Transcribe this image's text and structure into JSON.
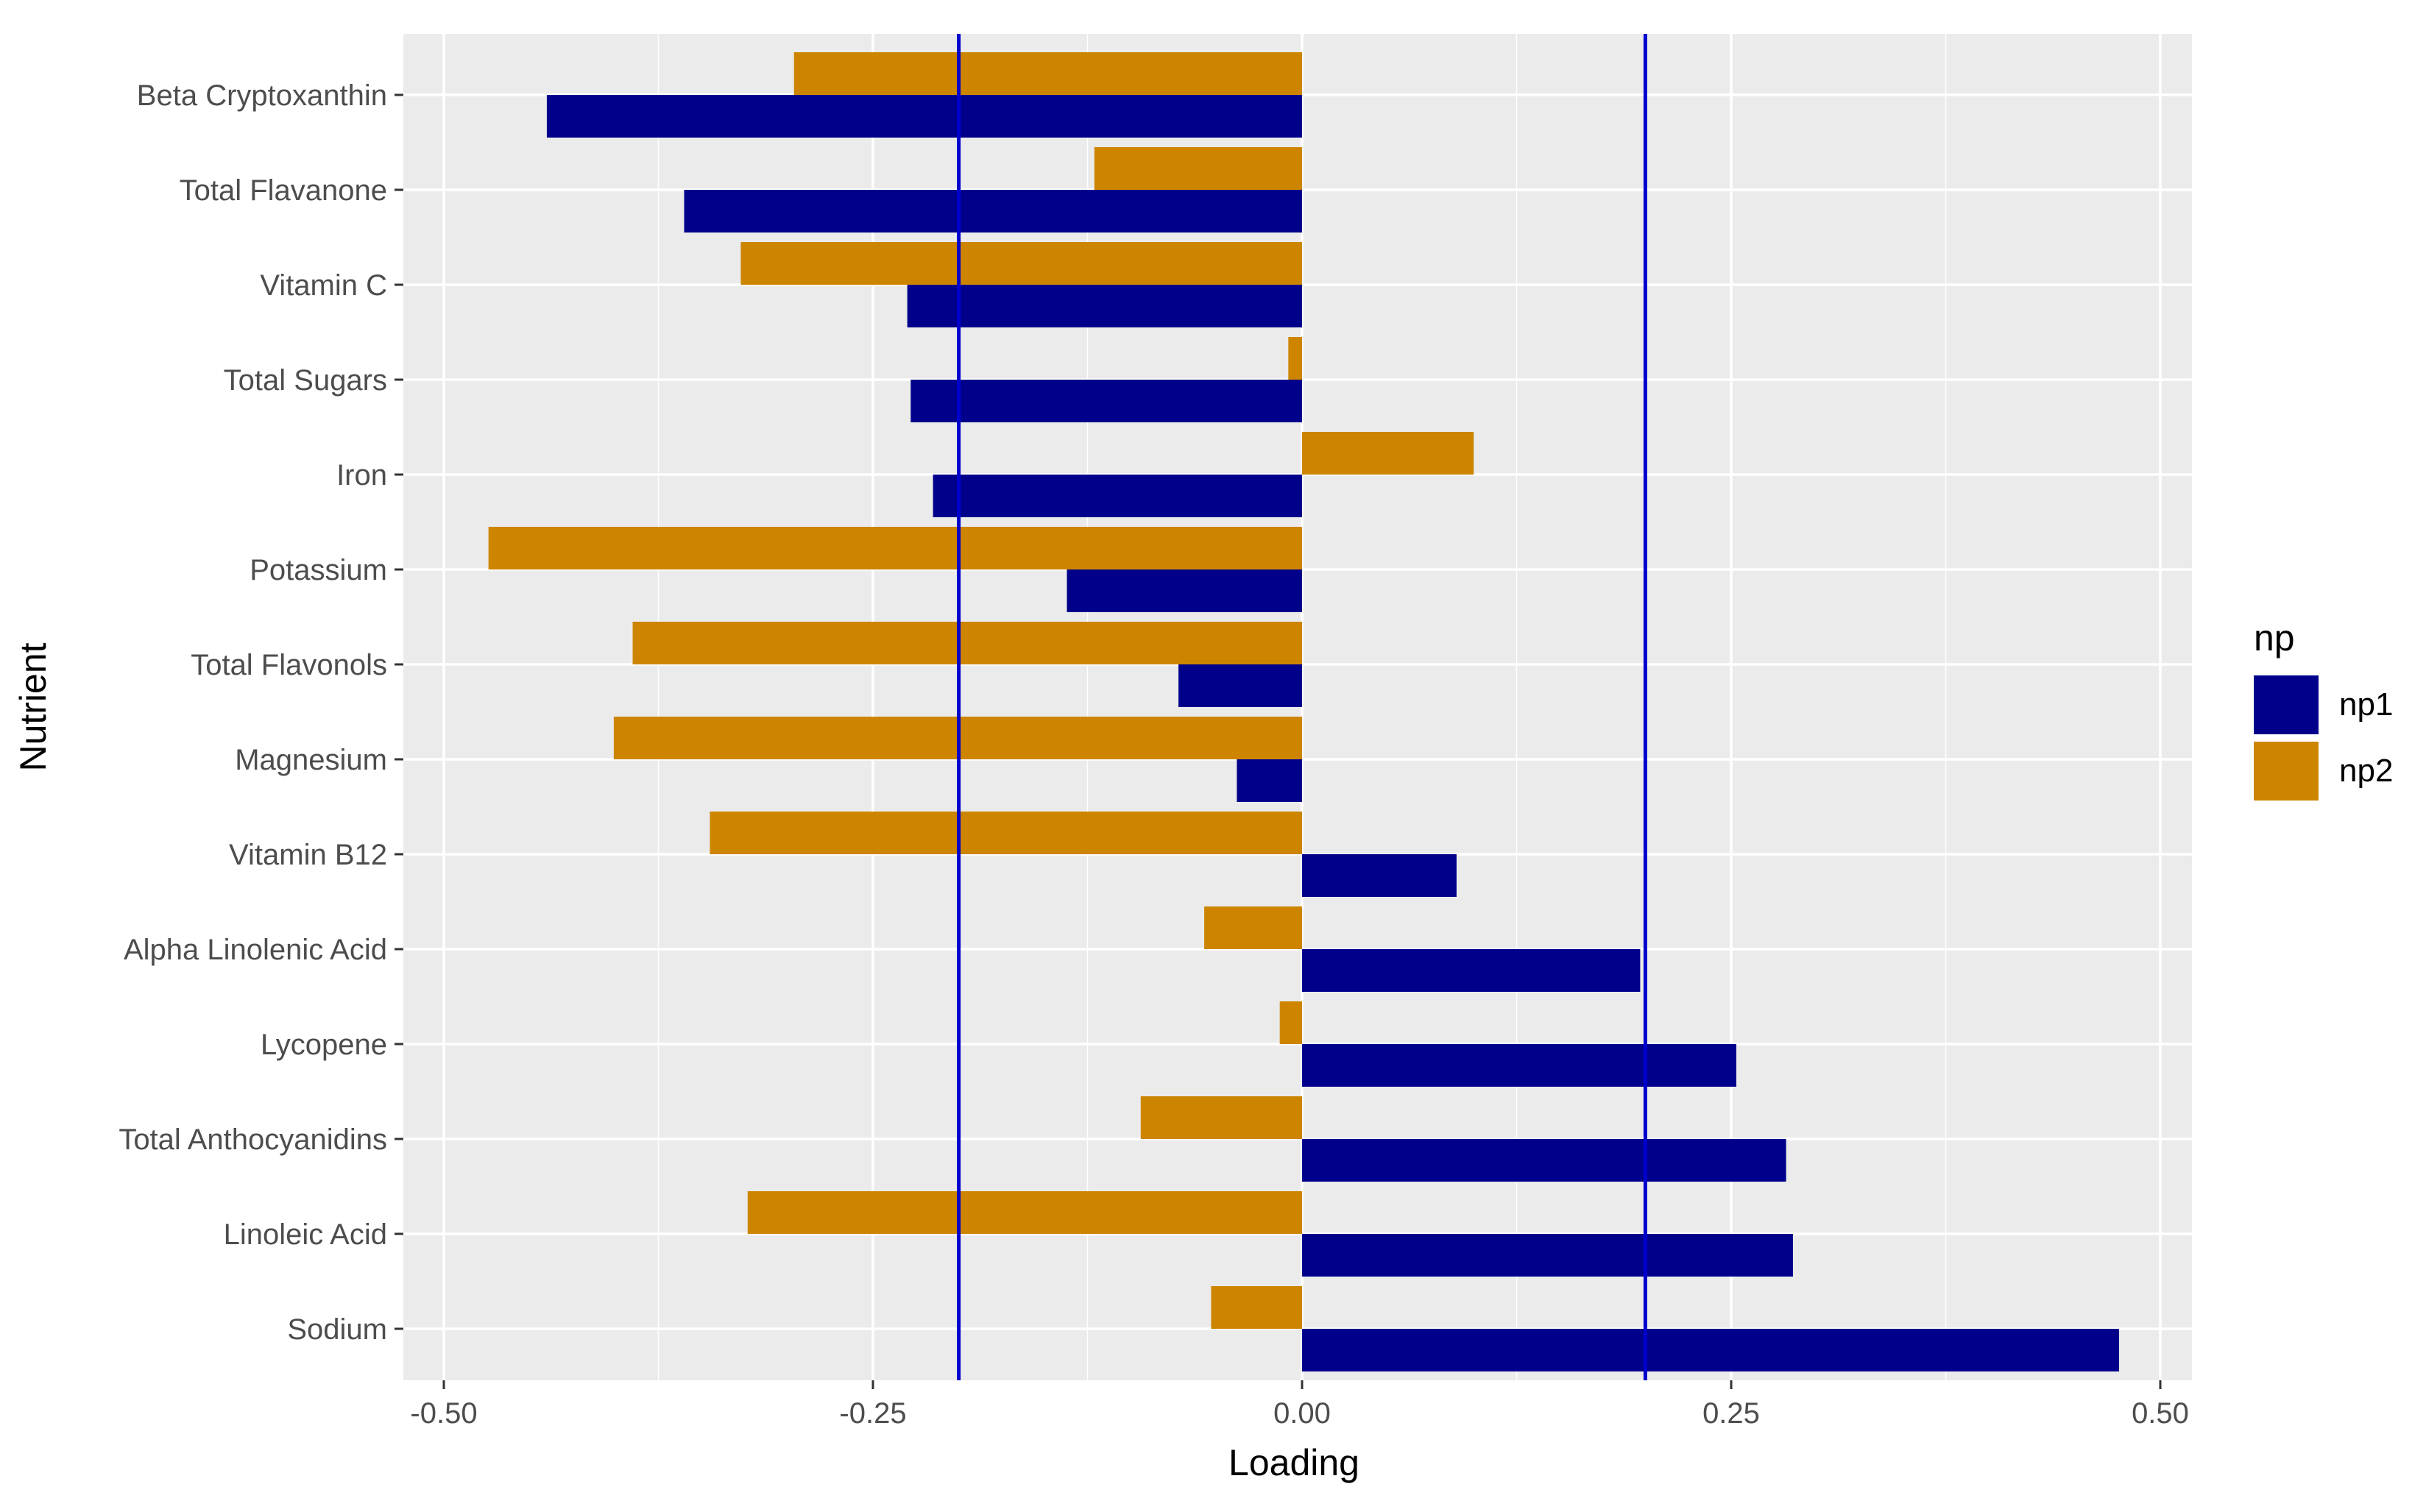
{
  "chart_data": {
    "type": "bar",
    "orientation": "horizontal",
    "title": "",
    "xlabel": "Loading",
    "ylabel": "Nutrient",
    "xlim": [
      -0.5,
      0.52
    ],
    "xticks": [
      -0.5,
      -0.25,
      0.0,
      0.25,
      0.5
    ],
    "xtick_labels": [
      "-0.50",
      "-0.25",
      "0.00",
      "0.25",
      "0.50"
    ],
    "grid": true,
    "legend_position": "right",
    "legend_title": "np",
    "reference_lines": [
      -0.2,
      0.2
    ],
    "reference_line_color": "#0000CD",
    "categories": [
      "Beta Cryptoxanthin",
      "Total Flavanone",
      "Vitamin C",
      "Total Sugars",
      "Iron",
      "Potassium",
      "Total Flavonols",
      "Magnesium",
      "Vitamin B12",
      "Alpha Linolenic Acid",
      "Lycopene",
      "Total Anthocyanidins",
      "Linoleic Acid",
      "Sodium"
    ],
    "series": [
      {
        "name": "np1",
        "color": "#00008B",
        "values": [
          -0.44,
          -0.36,
          -0.23,
          -0.228,
          -0.215,
          -0.137,
          -0.072,
          -0.038,
          0.09,
          0.197,
          0.253,
          0.282,
          0.286,
          0.476
        ]
      },
      {
        "name": "np2",
        "color": "#CD8500",
        "values": [
          -0.296,
          -0.121,
          -0.327,
          -0.008,
          0.1,
          -0.474,
          -0.39,
          -0.401,
          -0.345,
          -0.057,
          -0.013,
          -0.094,
          -0.323,
          -0.053
        ]
      }
    ]
  }
}
